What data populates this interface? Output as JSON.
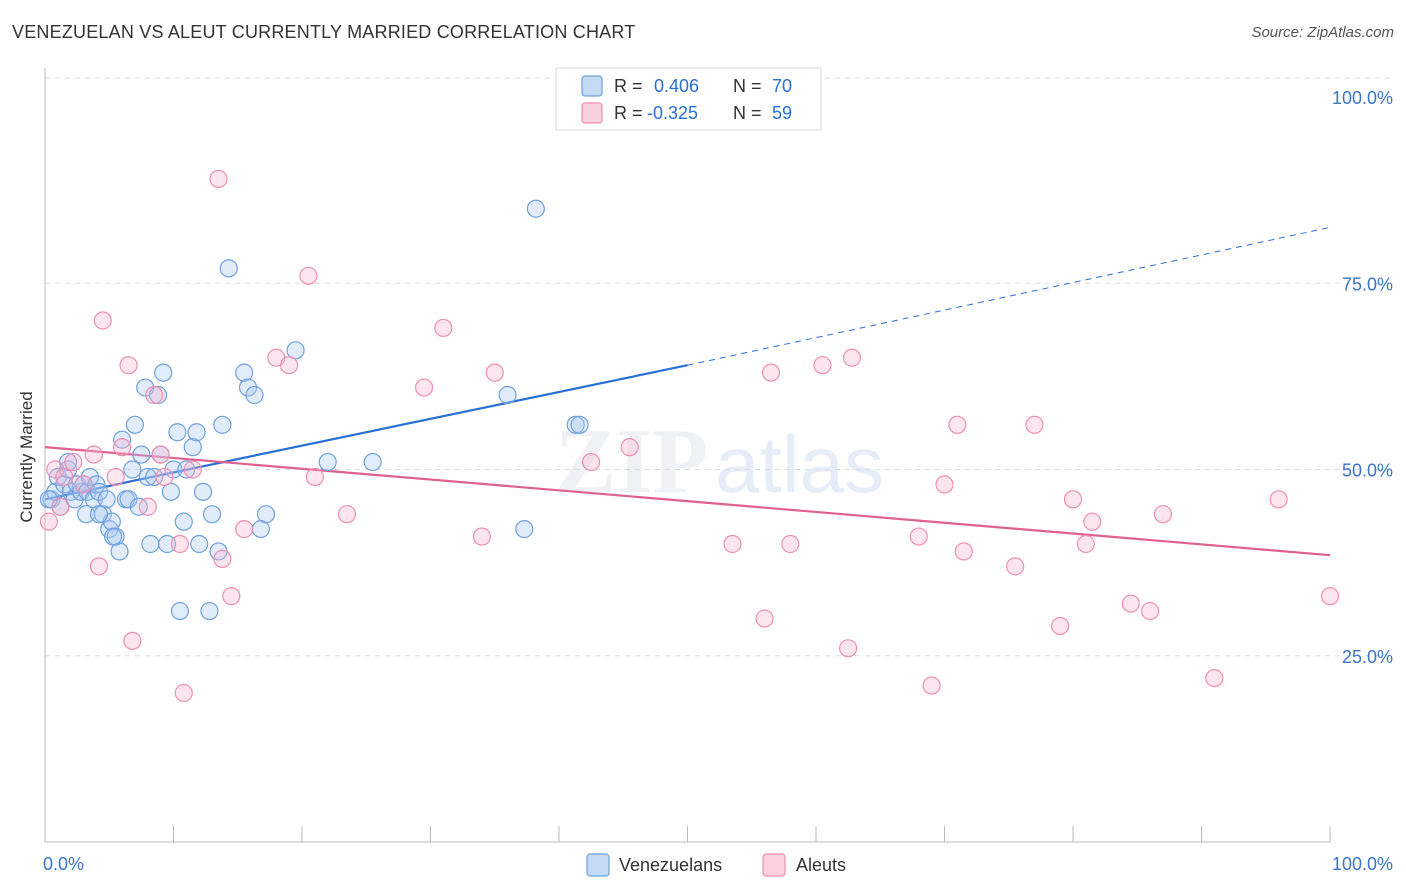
{
  "chart_data": {
    "type": "scatter",
    "title": "VENEZUELAN VS ALEUT CURRENTLY MARRIED CORRELATION CHART",
    "source": "Source: ZipAtlas.com",
    "xlabel": "",
    "ylabel": "Currently Married",
    "xlim": [
      0,
      100
    ],
    "ylim": [
      0,
      100
    ],
    "x_tick_labels": [
      "0.0%",
      "100.0%"
    ],
    "y_tick_labels": [
      {
        "value": 100,
        "label": "100.0%"
      },
      {
        "value": 75,
        "label": "75.0%"
      },
      {
        "value": 50,
        "label": "50.0%"
      },
      {
        "value": 25,
        "label": "25.0%"
      }
    ],
    "watermark": "ZIPatlas",
    "legend_top": [
      {
        "r_label": "R =",
        "r_value": "0.406",
        "n_label": "N =",
        "n_value": "70",
        "color": "#6fa0e0"
      },
      {
        "r_label": "R =",
        "r_value": "-0.325",
        "n_label": "N =",
        "n_value": "59",
        "color": "#f08fb0"
      }
    ],
    "series": [
      {
        "name": "Venezuelans",
        "color": "#6fa0e0",
        "line_color": "#2a6fd6",
        "trend": {
          "x0": 0,
          "y0": 46,
          "x1": 50,
          "y1": 64,
          "dash_to_x": 100,
          "dash_to_y": 82.5
        },
        "points": [
          [
            0.5,
            46
          ],
          [
            0.8,
            47
          ],
          [
            1.0,
            49
          ],
          [
            1.2,
            45
          ],
          [
            1.5,
            48
          ],
          [
            1.8,
            50
          ],
          [
            2.0,
            47
          ],
          [
            2.3,
            46
          ],
          [
            2.5,
            48
          ],
          [
            2.8,
            47
          ],
          [
            3.0,
            48
          ],
          [
            3.3,
            47
          ],
          [
            3.5,
            49
          ],
          [
            3.8,
            46
          ],
          [
            4.0,
            48
          ],
          [
            4.2,
            47
          ],
          [
            4.5,
            44
          ],
          [
            4.8,
            46
          ],
          [
            5.0,
            42
          ],
          [
            5.2,
            43
          ],
          [
            5.5,
            41
          ],
          [
            5.8,
            39
          ],
          [
            6.0,
            54
          ],
          [
            6.3,
            46
          ],
          [
            6.5,
            46
          ],
          [
            6.8,
            50
          ],
          [
            7.0,
            56
          ],
          [
            7.3,
            45
          ],
          [
            7.5,
            52
          ],
          [
            7.8,
            61
          ],
          [
            8.0,
            49
          ],
          [
            8.2,
            40
          ],
          [
            8.5,
            49
          ],
          [
            8.8,
            60
          ],
          [
            9.0,
            52
          ],
          [
            9.2,
            63
          ],
          [
            9.5,
            40
          ],
          [
            9.8,
            47
          ],
          [
            10.0,
            50
          ],
          [
            10.3,
            55
          ],
          [
            10.5,
            31
          ],
          [
            10.8,
            43
          ],
          [
            11.0,
            50
          ],
          [
            11.5,
            53
          ],
          [
            11.8,
            55
          ],
          [
            12.0,
            40
          ],
          [
            12.3,
            47
          ],
          [
            12.8,
            31
          ],
          [
            13.0,
            44
          ],
          [
            13.5,
            39
          ],
          [
            13.8,
            56
          ],
          [
            14.3,
            77
          ],
          [
            15.5,
            63
          ],
          [
            15.8,
            61
          ],
          [
            16.3,
            60
          ],
          [
            16.8,
            42
          ],
          [
            17.2,
            44
          ],
          [
            19.5,
            66
          ],
          [
            22.0,
            51
          ],
          [
            25.5,
            51
          ],
          [
            36.0,
            60
          ],
          [
            37.3,
            42
          ],
          [
            38.2,
            85
          ],
          [
            41.3,
            56
          ],
          [
            41.6,
            56
          ],
          [
            1.8,
            51
          ],
          [
            0.3,
            46
          ],
          [
            3.2,
            44
          ],
          [
            5.3,
            41
          ],
          [
            4.2,
            44
          ]
        ]
      },
      {
        "name": "Aleuts",
        "color": "#f08fb0",
        "line_color": "#e0608f",
        "trend": {
          "x0": 0,
          "y0": 53,
          "x1": 100,
          "y1": 38.5
        },
        "points": [
          [
            0.3,
            43
          ],
          [
            0.8,
            50
          ],
          [
            1.5,
            49
          ],
          [
            2.2,
            51
          ],
          [
            3.0,
            48
          ],
          [
            3.8,
            52
          ],
          [
            4.2,
            37
          ],
          [
            4.5,
            70
          ],
          [
            5.5,
            49
          ],
          [
            6.0,
            53
          ],
          [
            6.5,
            64
          ],
          [
            6.8,
            27
          ],
          [
            8.0,
            45
          ],
          [
            8.5,
            60
          ],
          [
            9.0,
            52
          ],
          [
            9.3,
            49
          ],
          [
            10.5,
            40
          ],
          [
            10.8,
            20
          ],
          [
            11.5,
            50
          ],
          [
            13.5,
            89
          ],
          [
            13.8,
            38
          ],
          [
            14.5,
            33
          ],
          [
            15.5,
            42
          ],
          [
            18.0,
            65
          ],
          [
            19.0,
            64
          ],
          [
            20.5,
            76
          ],
          [
            21.0,
            49
          ],
          [
            23.5,
            44
          ],
          [
            29.5,
            61
          ],
          [
            31.0,
            69
          ],
          [
            34.0,
            41
          ],
          [
            35.0,
            63
          ],
          [
            42.5,
            51
          ],
          [
            45.5,
            53
          ],
          [
            53.5,
            40
          ],
          [
            56.0,
            30
          ],
          [
            56.5,
            63
          ],
          [
            58.0,
            40
          ],
          [
            60.5,
            64
          ],
          [
            62.5,
            26
          ],
          [
            62.8,
            65
          ],
          [
            68.0,
            41
          ],
          [
            69.0,
            21
          ],
          [
            70.0,
            48
          ],
          [
            71.0,
            56
          ],
          [
            71.5,
            39
          ],
          [
            75.5,
            37
          ],
          [
            77.0,
            56
          ],
          [
            79.0,
            29
          ],
          [
            80.0,
            46
          ],
          [
            81.0,
            40
          ],
          [
            81.5,
            43
          ],
          [
            84.5,
            32
          ],
          [
            86.0,
            31
          ],
          [
            87.0,
            44
          ],
          [
            91.0,
            22
          ],
          [
            96.0,
            46
          ],
          [
            100.0,
            33
          ],
          [
            1.2,
            45
          ]
        ]
      }
    ]
  }
}
